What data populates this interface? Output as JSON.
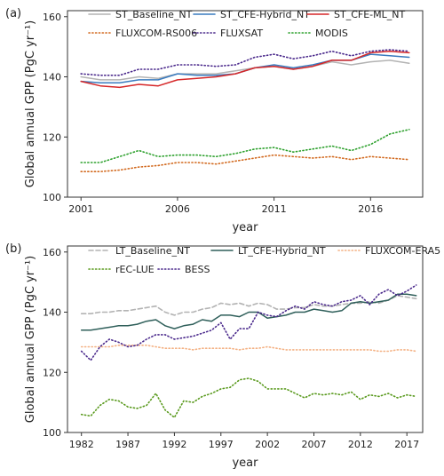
{
  "chart_data": [
    {
      "type": "line",
      "panel_label": "(a)",
      "xlabel": "year",
      "ylabel": "Global annual GPP (PgC yr⁻¹)",
      "xlim": [
        2000.3,
        2018.7
      ],
      "ylim": [
        100,
        162
      ],
      "xticks": [
        2001,
        2006,
        2011,
        2016
      ],
      "yticks": [
        100,
        120,
        140,
        160
      ],
      "grid": false,
      "legend": "top",
      "x": [
        2001,
        2002,
        2003,
        2004,
        2005,
        2006,
        2007,
        2008,
        2009,
        2010,
        2011,
        2012,
        2013,
        2014,
        2015,
        2016,
        2017,
        2018
      ],
      "series": [
        {
          "name": "ST_Baseline_NT",
          "color": "#b3b3b3",
          "dash": "solid",
          "values": [
            140.0,
            139.0,
            139.0,
            140.0,
            139.5,
            141.0,
            141.0,
            141.0,
            142.0,
            143.0,
            143.5,
            142.5,
            143.5,
            145.0,
            144.0,
            145.0,
            145.5,
            144.5
          ]
        },
        {
          "name": "ST_CFE-Hybrid_NT",
          "color": "#3a7bbf",
          "dash": "solid",
          "values": [
            138.5,
            138.0,
            138.0,
            139.0,
            139.0,
            141.0,
            140.5,
            140.5,
            141.0,
            143.0,
            144.0,
            143.0,
            144.0,
            145.5,
            145.5,
            147.5,
            147.0,
            146.5
          ]
        },
        {
          "name": "ST_CFE-ML_NT",
          "color": "#d62728",
          "dash": "solid",
          "values": [
            138.5,
            137.0,
            136.5,
            137.5,
            137.0,
            139.0,
            139.5,
            140.0,
            141.0,
            143.0,
            143.5,
            142.5,
            143.5,
            145.5,
            145.5,
            148.0,
            148.5,
            148.0
          ]
        },
        {
          "name": "FLUXCOM-RS006",
          "color": "#d2691e",
          "dash": "dot",
          "values": [
            108.5,
            108.5,
            109.0,
            110.0,
            110.5,
            111.5,
            111.5,
            111.0,
            112.0,
            113.0,
            114.0,
            113.5,
            113.0,
            113.5,
            112.5,
            113.5,
            113.0,
            112.5
          ]
        },
        {
          "name": "FLUXSAT",
          "color": "#4b2a8c",
          "dash": "dot",
          "values": [
            141.0,
            140.5,
            140.5,
            142.5,
            142.5,
            144.0,
            144.0,
            143.5,
            144.0,
            146.5,
            147.5,
            146.0,
            147.0,
            148.5,
            147.0,
            148.5,
            149.0,
            148.5
          ]
        },
        {
          "name": "MODIS",
          "color": "#2ca02c",
          "dash": "dot",
          "values": [
            111.5,
            111.5,
            113.5,
            115.5,
            113.5,
            114.0,
            114.0,
            113.5,
            114.5,
            116.0,
            116.5,
            115.0,
            116.0,
            117.0,
            115.5,
            117.5,
            121.0,
            122.5
          ]
        }
      ]
    },
    {
      "type": "line",
      "panel_label": "(b)",
      "xlabel": "year",
      "ylabel": "Global annual GPP (PgC yr⁻¹)",
      "xlim": [
        1980.5,
        2018.7
      ],
      "ylim": [
        100,
        162
      ],
      "xticks": [
        1982,
        1987,
        1992,
        1997,
        2002,
        2007,
        2012,
        2017
      ],
      "yticks": [
        100,
        120,
        140,
        160
      ],
      "grid": false,
      "legend": "top",
      "x": [
        1982,
        1983,
        1984,
        1985,
        1986,
        1987,
        1988,
        1989,
        1990,
        1991,
        1992,
        1993,
        1994,
        1995,
        1996,
        1997,
        1998,
        1999,
        2000,
        2001,
        2002,
        2003,
        2004,
        2005,
        2006,
        2007,
        2008,
        2009,
        2010,
        2011,
        2012,
        2013,
        2014,
        2015,
        2016,
        2017,
        2018
      ],
      "series": [
        {
          "name": "LT_Baseline_NT",
          "color": "#b3b3b3",
          "dash": "dash",
          "values": [
            139.5,
            139.5,
            140.0,
            140.0,
            140.5,
            140.5,
            141.0,
            141.5,
            142.0,
            140.0,
            139.0,
            140.0,
            140.0,
            141.0,
            141.5,
            143.0,
            142.5,
            143.0,
            142.0,
            143.0,
            142.5,
            141.0,
            141.0,
            141.5,
            141.5,
            142.5,
            142.0,
            142.0,
            142.5,
            143.0,
            143.0,
            143.5,
            143.0,
            144.0,
            145.5,
            145.0,
            144.5
          ]
        },
        {
          "name": "LT_CFE-Hybrid_NT",
          "color": "#2f5f5a",
          "dash": "solid",
          "values": [
            134.0,
            134.0,
            134.5,
            135.0,
            135.5,
            135.5,
            136.0,
            137.0,
            137.5,
            135.5,
            134.5,
            135.5,
            136.0,
            137.5,
            137.0,
            139.0,
            139.0,
            138.5,
            140.0,
            140.0,
            138.0,
            138.5,
            139.0,
            140.0,
            140.0,
            141.0,
            140.5,
            140.0,
            140.5,
            143.0,
            143.5,
            143.0,
            143.5,
            144.0,
            146.0,
            146.0,
            145.5
          ]
        },
        {
          "name": "FLUXCOM-ERA5",
          "color": "#f4b183",
          "dash": "dot",
          "values": [
            128.5,
            128.5,
            128.5,
            128.5,
            129.0,
            129.0,
            129.0,
            129.0,
            128.5,
            128.0,
            128.0,
            128.0,
            127.5,
            128.0,
            128.0,
            128.0,
            128.0,
            127.5,
            128.0,
            128.0,
            128.5,
            128.0,
            127.5,
            127.5,
            127.5,
            127.5,
            127.5,
            127.5,
            127.5,
            127.5,
            127.5,
            127.5,
            127.0,
            127.0,
            127.5,
            127.5,
            127.0
          ]
        },
        {
          "name": "rEC-LUE",
          "color": "#5a9a1e",
          "dash": "dot",
          "values": [
            106.0,
            105.5,
            109.0,
            111.0,
            110.5,
            108.5,
            108.0,
            109.0,
            113.0,
            107.5,
            105.0,
            110.5,
            110.0,
            112.0,
            113.0,
            114.5,
            115.0,
            117.5,
            118.0,
            117.0,
            114.5,
            114.5,
            114.5,
            113.0,
            111.5,
            113.0,
            112.5,
            113.0,
            112.5,
            113.5,
            111.0,
            112.5,
            112.0,
            113.0,
            111.5,
            112.5,
            112.0
          ]
        },
        {
          "name": "BESS",
          "color": "#4b2a8c",
          "dash": "dot",
          "values": [
            127.0,
            124.0,
            128.5,
            131.0,
            130.0,
            128.5,
            129.0,
            131.0,
            132.5,
            132.5,
            131.0,
            131.5,
            132.0,
            133.0,
            134.0,
            136.5,
            131.0,
            134.5,
            134.5,
            140.0,
            139.0,
            138.5,
            140.5,
            142.0,
            141.0,
            143.5,
            142.5,
            142.0,
            143.5,
            144.0,
            145.5,
            142.5,
            146.0,
            147.5,
            145.5,
            147.0,
            149.0
          ]
        }
      ]
    }
  ]
}
